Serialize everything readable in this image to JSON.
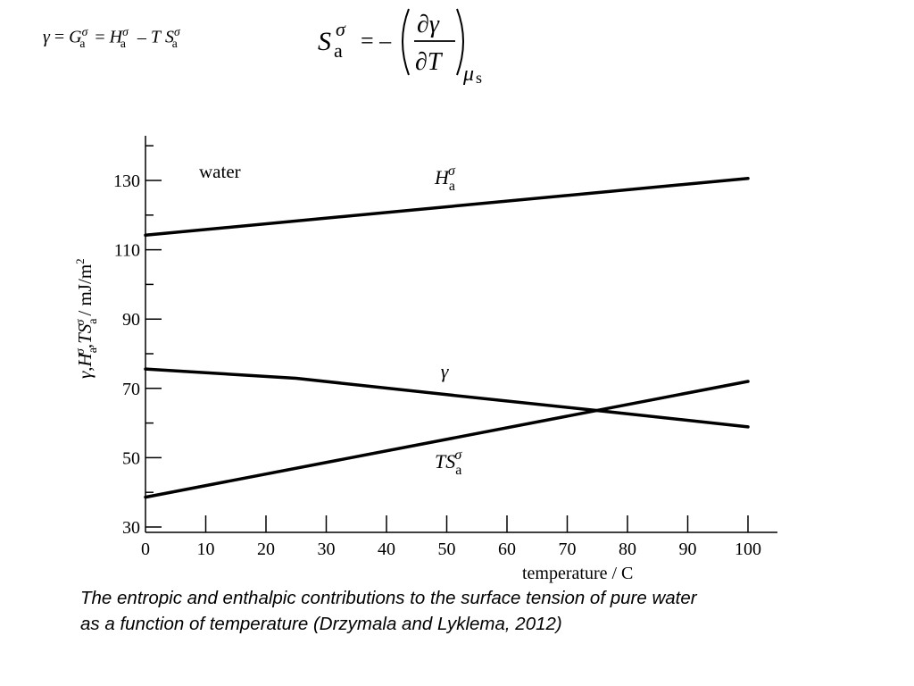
{
  "formulas": {
    "definition": {
      "gamma": "γ",
      "eq": "=",
      "G": "G",
      "minus": "–",
      "T": "T",
      "H": "H",
      "S": "S",
      "sigma": "σ",
      "a": "a"
    },
    "entropy": {
      "S": "S",
      "sigma": "σ",
      "a": "a",
      "eq_minus": "= –",
      "numerator": "∂γ",
      "denominator": "∂T",
      "mu": "μ",
      "s": "s"
    }
  },
  "chart_data": {
    "type": "line",
    "x_axis": {
      "label": "temperature / C",
      "range": [
        0,
        100
      ],
      "ticks": [
        0,
        10,
        20,
        30,
        40,
        50,
        60,
        70,
        80,
        90,
        100
      ]
    },
    "y_axis": {
      "label_parts": {
        "gamma": "γ",
        "comma": ",",
        "H": "H",
        "T": "T",
        "S": "S",
        "sigma": "σ",
        "a": "a",
        "unit": "/ mJ/m",
        "unit_exp": "2"
      },
      "range": [
        30,
        140
      ],
      "ticks": [
        30,
        50,
        70,
        90,
        110,
        130
      ]
    },
    "annotation": "water",
    "series": [
      {
        "id": "H",
        "label_parts": {
          "main": "H",
          "sub": "a",
          "sup": "σ"
        },
        "label_at": {
          "x": 48,
          "y": 129
        },
        "points": [
          [
            0,
            114.2
          ],
          [
            100,
            130.6
          ]
        ]
      },
      {
        "id": "gamma",
        "label_parts": {
          "main": "γ",
          "sub": "",
          "sup": ""
        },
        "label_at": {
          "x": 49,
          "y": 73
        },
        "points": [
          [
            0,
            75.6
          ],
          [
            25,
            72.9
          ],
          [
            50,
            68.2
          ],
          [
            75,
            63.6
          ],
          [
            100,
            58.9
          ]
        ]
      },
      {
        "id": "TS",
        "label_parts": {
          "main": "TS",
          "sub": "a",
          "sup": "σ"
        },
        "label_at": {
          "x": 48,
          "y": 47
        },
        "points": [
          [
            0,
            38.6
          ],
          [
            100,
            72.0
          ]
        ]
      }
    ]
  },
  "caption": {
    "line1": "The entropic and enthalpic contributions to the surface tension of pure water",
    "line2": "as a function of temperature (Drzymala and Lyklema, 2012)"
  }
}
